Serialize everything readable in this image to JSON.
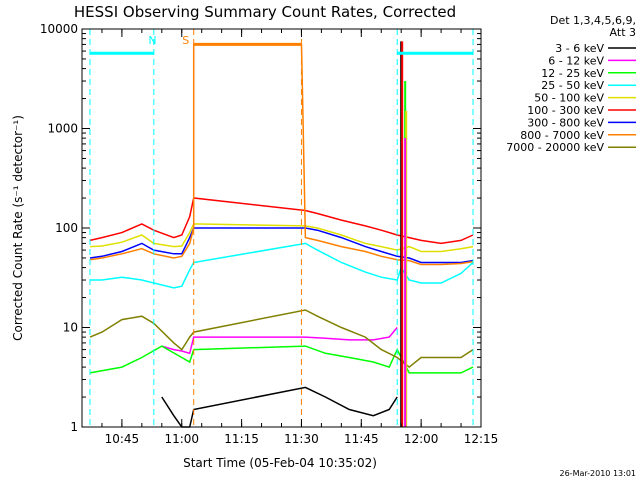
{
  "chart_data": {
    "type": "line",
    "title": "HESSI Observing Summary Count Rates, Corrected",
    "xlabel": "Start Time (05-Feb-04 10:35:02)",
    "ylabel": "Corrected Count Rate (s⁻¹ detector⁻¹)",
    "y_scale": "log",
    "xlim": [
      "10:35",
      "12:15"
    ],
    "ylim": [
      1,
      10000
    ],
    "x_ticks": [
      "10:45",
      "11:00",
      "11:15",
      "11:30",
      "11:45",
      "12:00",
      "12:15"
    ],
    "y_ticks": [
      "1",
      "10",
      "100",
      "1000",
      "10000"
    ],
    "grid": false,
    "legend_position": "right",
    "legend_header": [
      "Det 1,3,4,5,6,9,",
      "Att 3"
    ],
    "series": [
      {
        "name": "3 - 6 keV",
        "color": "#000000",
        "x": [
          "10:55",
          "10:58",
          "11:00",
          "11:02",
          "11:03",
          "11:31",
          "11:36",
          "11:42",
          "11:48",
          "11:52",
          "11:54"
        ],
        "y": [
          2.0,
          1.3,
          1.0,
          1.0,
          1.5,
          2.5,
          2.0,
          1.5,
          1.3,
          1.5,
          2.0
        ]
      },
      {
        "name": "6 - 12 keV",
        "color": "#ff00ff",
        "x": [
          "10:55",
          "10:58",
          "11:00",
          "11:02",
          "11:03",
          "11:31",
          "11:36",
          "11:42",
          "11:48",
          "11:52",
          "11:54"
        ],
        "y": [
          6.5,
          6.0,
          5.8,
          5.5,
          8.0,
          8.0,
          7.8,
          7.5,
          7.5,
          8.0,
          10.0
        ]
      },
      {
        "name": "12 - 25 keV",
        "color": "#00ff00",
        "x": [
          "10:37",
          "10:45",
          "10:50",
          "10:55",
          "11:00",
          "11:02",
          "11:03",
          "11:31",
          "11:36",
          "11:42",
          "11:48",
          "11:52",
          "11:54",
          "11:55",
          "11:57",
          "12:00",
          "12:05",
          "12:10",
          "12:13"
        ],
        "y": [
          3.5,
          4.0,
          5.0,
          6.5,
          5.0,
          4.5,
          6.0,
          6.5,
          5.5,
          5.0,
          4.5,
          4.0,
          6.0,
          5.0,
          3.5,
          3.5,
          3.5,
          3.5,
          4.0
        ]
      },
      {
        "name": "25 - 50 keV",
        "color": "#00ffff",
        "x": [
          "10:37",
          "10:40",
          "10:45",
          "10:50",
          "10:53",
          "10:58",
          "11:00",
          "11:02",
          "11:03",
          "11:31",
          "11:34",
          "11:40",
          "11:46",
          "11:50",
          "11:54",
          "11:55",
          "11:57",
          "12:00",
          "12:05",
          "12:10",
          "12:13"
        ],
        "y": [
          30,
          30,
          32,
          30,
          28,
          25,
          26,
          38,
          45,
          70,
          60,
          45,
          36,
          32,
          30,
          40,
          30,
          28,
          28,
          35,
          45
        ]
      },
      {
        "name": "50 - 100 keV",
        "color": "#e0e000",
        "x": [
          "10:37",
          "10:40",
          "10:45",
          "10:50",
          "10:53",
          "10:58",
          "11:00",
          "11:02",
          "11:03",
          "11:31",
          "11:34",
          "11:40",
          "11:46",
          "11:50",
          "11:54",
          "11:57",
          "12:00",
          "12:05",
          "12:10",
          "12:13"
        ],
        "y": [
          65,
          66,
          72,
          85,
          70,
          65,
          66,
          90,
          110,
          105,
          100,
          85,
          70,
          65,
          60,
          65,
          58,
          58,
          62,
          65
        ]
      },
      {
        "name": "100 - 300 keV",
        "color": "#ff0000",
        "x": [
          "10:37",
          "10:40",
          "10:45",
          "10:50",
          "10:53",
          "10:58",
          "11:00",
          "11:02",
          "11:03",
          "11:31",
          "11:34",
          "11:40",
          "11:46",
          "11:50",
          "11:54",
          "11:57",
          "12:00",
          "12:05",
          "12:10",
          "12:13"
        ],
        "y": [
          75,
          80,
          90,
          110,
          95,
          80,
          85,
          130,
          200,
          150,
          140,
          120,
          105,
          95,
          85,
          80,
          75,
          70,
          75,
          85
        ]
      },
      {
        "name": "300 - 800 keV",
        "color": "#0000ff",
        "x": [
          "10:37",
          "10:40",
          "10:45",
          "10:50",
          "10:53",
          "10:58",
          "11:00",
          "11:02",
          "11:03",
          "11:31",
          "11:34",
          "11:40",
          "11:46",
          "11:50",
          "11:54",
          "11:57",
          "12:00",
          "12:05",
          "12:10",
          "12:13"
        ],
        "y": [
          50,
          52,
          58,
          70,
          60,
          55,
          55,
          80,
          100,
          100,
          95,
          80,
          65,
          58,
          52,
          50,
          45,
          45,
          45,
          47
        ]
      },
      {
        "name": "800 - 7000 keV",
        "color": "#ff8000",
        "x": [
          "10:37",
          "10:40",
          "10:45",
          "10:50",
          "10:53",
          "10:58",
          "11:00",
          "11:02",
          "11:03",
          "11:03",
          "11:30",
          "11:31",
          "11:34",
          "11:40",
          "11:46",
          "11:50",
          "11:54",
          "11:57",
          "12:00",
          "12:05",
          "12:10",
          "12:13"
        ],
        "y": [
          48,
          50,
          55,
          62,
          55,
          50,
          52,
          70,
          100,
          7000,
          7000,
          80,
          75,
          65,
          58,
          52,
          48,
          47,
          43,
          43,
          44,
          46
        ]
      },
      {
        "name": "7000 - 20000 keV",
        "color": "#808000",
        "x": [
          "10:37",
          "10:40",
          "10:45",
          "10:50",
          "10:53",
          "10:58",
          "11:00",
          "11:02",
          "11:03",
          "11:31",
          "11:34",
          "11:40",
          "11:46",
          "11:50",
          "11:54",
          "11:57",
          "12:00",
          "12:05",
          "12:10",
          "12:13"
        ],
        "y": [
          8,
          9,
          12,
          13,
          11,
          7,
          6,
          8,
          9,
          15,
          13,
          10,
          8,
          6,
          5,
          4,
          5,
          5,
          5,
          6
        ]
      }
    ],
    "annotations": [
      {
        "label": "N",
        "color": "#00ffff",
        "x_start": "10:37",
        "x_end": "10:53",
        "y": 5700
      },
      {
        "label": "S",
        "color": "#ff8000",
        "x_start": "11:03",
        "x_end": "11:30",
        "y": 7000
      },
      {
        "label": "",
        "color": "#00ffff",
        "x_start": "11:54",
        "x_end": "12:13",
        "y": 5700
      }
    ],
    "flare_spikes": [
      {
        "x": "11:55",
        "color": "#000000",
        "y": 7500
      },
      {
        "x": "11:55",
        "color": "#ff0000",
        "y": 7500
      },
      {
        "x": "11:56",
        "color": "#00ff00",
        "y": 3000
      },
      {
        "x": "11:56",
        "color": "#e0e000",
        "y": 1500
      },
      {
        "x": "11:56",
        "color": "#ff00ff",
        "y": 800
      }
    ],
    "timestamp": "26-Mar-2010 13:01"
  }
}
